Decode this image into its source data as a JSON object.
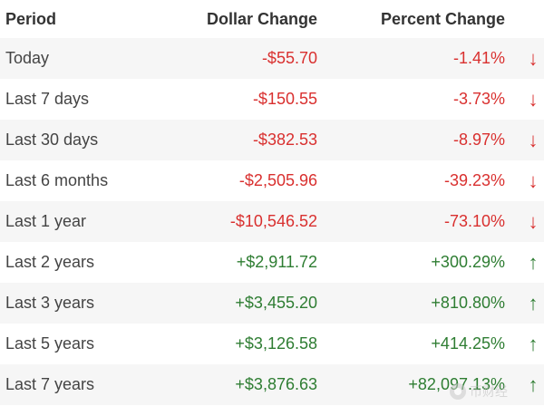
{
  "header": {
    "period": "Period",
    "dollar": "Dollar Change",
    "percent": "Percent Change"
  },
  "rows": [
    {
      "period": "Today",
      "dollar": "-$55.70",
      "percent": "-1.41%",
      "direction": "down"
    },
    {
      "period": "Last 7 days",
      "dollar": "-$150.55",
      "percent": "-3.73%",
      "direction": "down"
    },
    {
      "period": "Last 30 days",
      "dollar": "-$382.53",
      "percent": "-8.97%",
      "direction": "down"
    },
    {
      "period": "Last 6 months",
      "dollar": "-$2,505.96",
      "percent": "-39.23%",
      "direction": "down"
    },
    {
      "period": "Last 1 year",
      "dollar": "-$10,546.52",
      "percent": "-73.10%",
      "direction": "down"
    },
    {
      "period": "Last 2 years",
      "dollar": "+$2,911.72",
      "percent": "+300.29%",
      "direction": "up"
    },
    {
      "period": "Last 3 years",
      "dollar": "+$3,455.20",
      "percent": "+810.80%",
      "direction": "up"
    },
    {
      "period": "Last 5 years",
      "dollar": "+$3,126.58",
      "percent": "+414.25%",
      "direction": "up"
    },
    {
      "period": "Last 7 years",
      "dollar": "+$3,876.63",
      "percent": "+82,097.13%",
      "direction": "up"
    }
  ],
  "arrows": {
    "down": "↓",
    "up": "↑"
  },
  "colors": {
    "negative": "#d9302f",
    "positive": "#2e7d32",
    "stripe": "#f6f6f6"
  },
  "watermark": {
    "text": "币财经"
  }
}
